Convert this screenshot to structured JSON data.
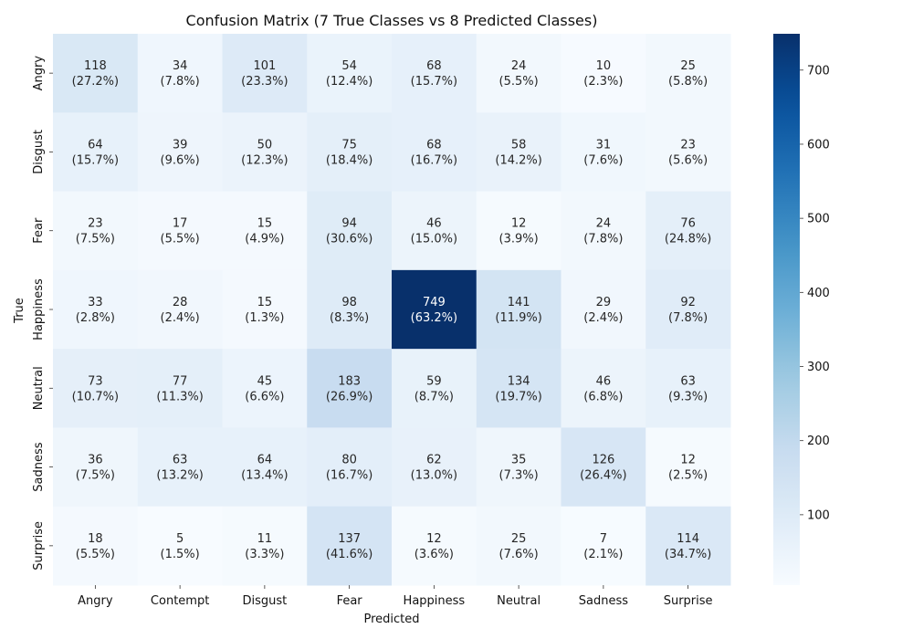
{
  "chart_data": {
    "type": "heatmap",
    "title": "Confusion Matrix (7 True Classes vs 8 Predicted Classes)",
    "xlabel": "Predicted",
    "ylabel": "True",
    "x_categories": [
      "Angry",
      "Contempt",
      "Disgust",
      "Fear",
      "Happiness",
      "Neutral",
      "Sadness",
      "Surprise"
    ],
    "y_categories": [
      "Angry",
      "Disgust",
      "Fear",
      "Happiness",
      "Neutral",
      "Sadness",
      "Surprise"
    ],
    "values": [
      [
        118,
        34,
        101,
        54,
        68,
        24,
        10,
        25
      ],
      [
        64,
        39,
        50,
        75,
        68,
        58,
        31,
        23
      ],
      [
        23,
        17,
        15,
        94,
        46,
        12,
        24,
        76
      ],
      [
        33,
        28,
        15,
        98,
        749,
        141,
        29,
        92
      ],
      [
        73,
        77,
        45,
        183,
        59,
        134,
        46,
        63
      ],
      [
        36,
        63,
        64,
        80,
        62,
        35,
        126,
        12
      ],
      [
        18,
        5,
        11,
        137,
        12,
        25,
        7,
        114
      ]
    ],
    "percent_labels": [
      [
        "(27.2%)",
        "(7.8%)",
        "(23.3%)",
        "(12.4%)",
        "(15.7%)",
        "(5.5%)",
        "(2.3%)",
        "(5.8%)"
      ],
      [
        "(15.7%)",
        "(9.6%)",
        "(12.3%)",
        "(18.4%)",
        "(16.7%)",
        "(14.2%)",
        "(7.6%)",
        "(5.6%)"
      ],
      [
        "(7.5%)",
        "(5.5%)",
        "(4.9%)",
        "(30.6%)",
        "(15.0%)",
        "(3.9%)",
        "(7.8%)",
        "(24.8%)"
      ],
      [
        "(2.8%)",
        "(2.4%)",
        "(1.3%)",
        "(8.3%)",
        "(63.2%)",
        "(11.9%)",
        "(2.4%)",
        "(7.8%)"
      ],
      [
        "(10.7%)",
        "(11.3%)",
        "(6.6%)",
        "(26.9%)",
        "(8.7%)",
        "(19.7%)",
        "(6.8%)",
        "(9.3%)"
      ],
      [
        "(7.5%)",
        "(13.2%)",
        "(13.4%)",
        "(16.7%)",
        "(13.0%)",
        "(7.3%)",
        "(26.4%)",
        "(2.5%)"
      ],
      [
        "(5.5%)",
        "(1.5%)",
        "(3.3%)",
        "(41.6%)",
        "(3.6%)",
        "(7.6%)",
        "(2.1%)",
        "(34.7%)"
      ]
    ],
    "colormap": "Blues",
    "vmin": 5,
    "vmax": 749,
    "colorbar_ticks": [
      100,
      200,
      300,
      400,
      500,
      600,
      700
    ],
    "grid": false,
    "colorbar_position": "right"
  }
}
